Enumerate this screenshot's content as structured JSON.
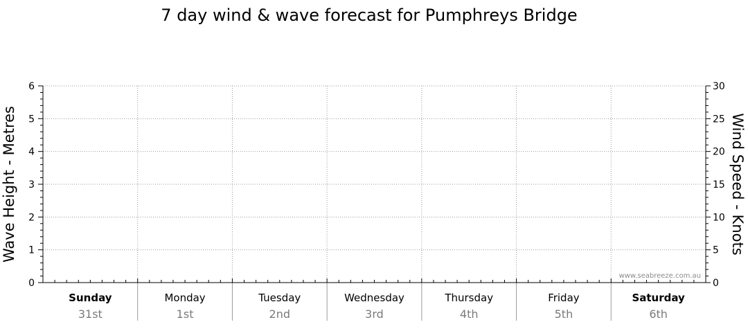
{
  "chart_data": {
    "type": "line",
    "title": "7 day wind & wave forecast for Pumphreys Bridge",
    "ylabel_left": "Wave Height - Metres",
    "ylabel_right": "Wind Speed - Knots",
    "ylim_left": [
      0,
      6
    ],
    "ylim_right": [
      0,
      30
    ],
    "yticks_left": [
      "0",
      "1",
      "2",
      "3",
      "4",
      "5",
      "6"
    ],
    "yticks_right": [
      "0",
      "5",
      "10",
      "15",
      "20",
      "25",
      "30"
    ],
    "days": [
      {
        "day": "Sunday",
        "date": "31st",
        "bold": true
      },
      {
        "day": "Monday",
        "date": "1st",
        "bold": false
      },
      {
        "day": "Tuesday",
        "date": "2nd",
        "bold": false
      },
      {
        "day": "Wednesday",
        "date": "3rd",
        "bold": false
      },
      {
        "day": "Thursday",
        "date": "4th",
        "bold": false
      },
      {
        "day": "Friday",
        "date": "5th",
        "bold": false
      },
      {
        "day": "Saturday",
        "date": "6th",
        "bold": true
      }
    ],
    "grid": true,
    "series": [],
    "watermark": "www.seabreeze.com.au"
  },
  "colors": {
    "axis": "#000000",
    "grid": "#9a9a9a",
    "date_text": "#7a7a7a",
    "watermark": "#8a8a8a"
  }
}
